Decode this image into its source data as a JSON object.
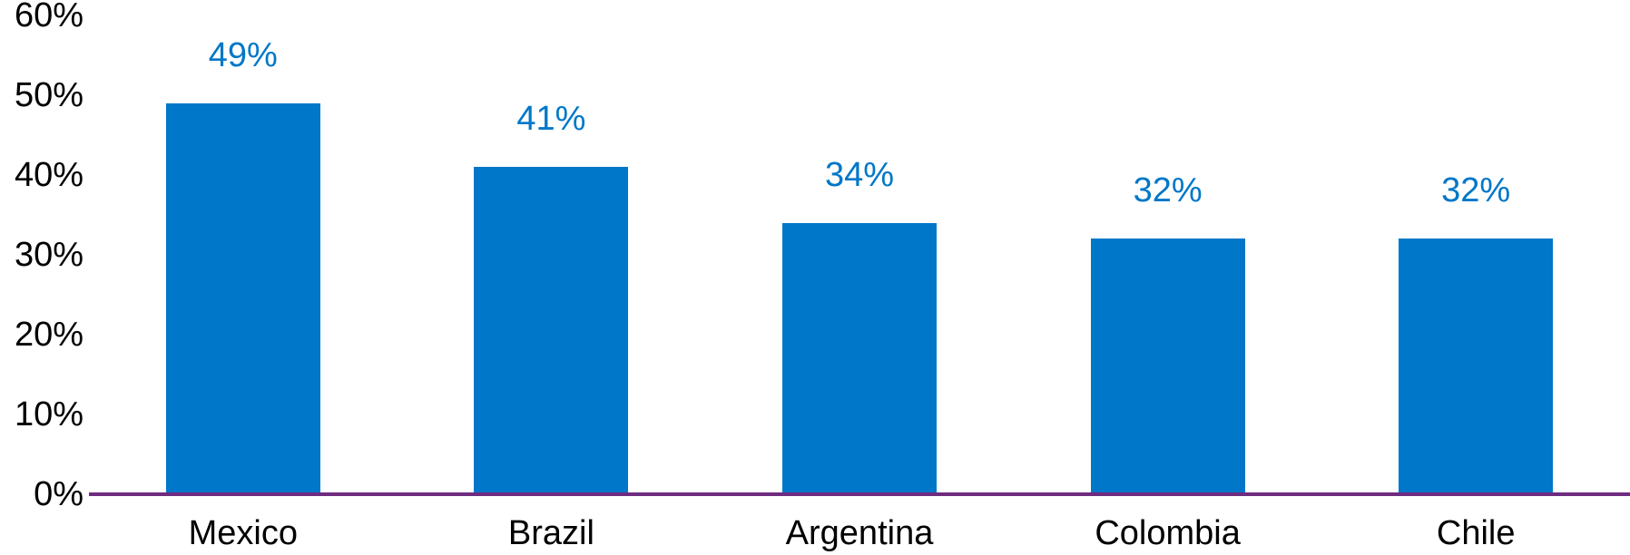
{
  "chart_data": {
    "type": "bar",
    "title": "",
    "xlabel": "",
    "ylabel": "",
    "categories": [
      "Mexico",
      "Brazil",
      "Argentina",
      "Colombia",
      "Chile"
    ],
    "values": [
      49,
      41,
      34,
      32,
      32
    ],
    "value_labels": [
      "49%",
      "41%",
      "34%",
      "32%",
      "32%"
    ],
    "yticks": [
      0,
      10,
      20,
      30,
      40,
      50,
      60
    ],
    "ytick_labels": [
      "0%",
      "10%",
      "20%",
      "30%",
      "40%",
      "50%",
      "60%"
    ],
    "ylim": [
      0,
      60
    ],
    "grid": false,
    "legend": null,
    "colors": {
      "bar": "#0077C8",
      "value_label": "#0077C8",
      "tick_label": "#000000",
      "category_label": "#000000",
      "baseline": "#6E2B80",
      "background": "#FFFFFF"
    }
  }
}
